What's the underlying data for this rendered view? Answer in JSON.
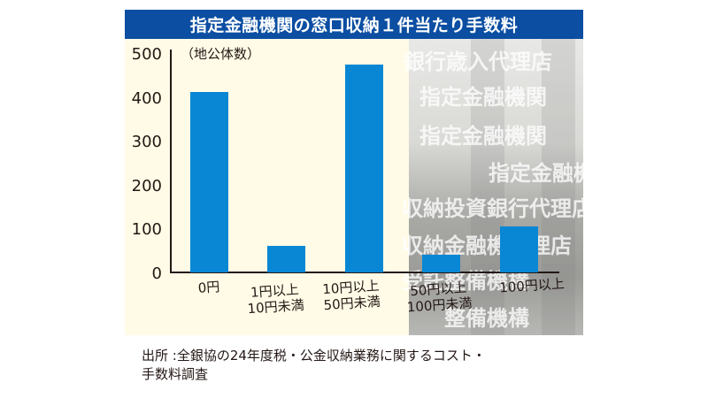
{
  "title": "指定金融機関の窓口収納１件当たり手数料",
  "unit_label": "（地公体数）",
  "colors": {
    "title_bg": "#0b4ea2",
    "bar": "#0a87d4",
    "plot_bg": "#fffbe6"
  },
  "y_ticks": [
    "500",
    "400",
    "300",
    "200",
    "100",
    "0"
  ],
  "x_labels": [
    {
      "line1": "0円",
      "line2": ""
    },
    {
      "line1": "1円以上",
      "line2": "10円未満"
    },
    {
      "line1": "10円以上",
      "line2": "50円未満"
    },
    {
      "line1": "50円以上",
      "line2": "100円未満"
    },
    {
      "line1": "100円以上",
      "line2": ""
    }
  ],
  "background_signs": [
    "銀行歳入代理店",
    "指定金融機関",
    "指定金融機関",
    "指定金融機",
    "収納投資銀行代理店",
    "収納金融機代理店",
    "受託整備機構",
    "整備機構"
  ],
  "source": {
    "line1": "出所 :全銀協の24年度税・公金収納業務に関するコスト・",
    "line2": "手数料調査"
  },
  "chart_data": {
    "type": "bar",
    "title": "指定金融機関の窓口収納１件当たり手数料",
    "xlabel": "",
    "ylabel": "（地公体数）",
    "categories": [
      "0円",
      "1円以上10円未満",
      "10円以上50円未満",
      "50円以上100円未満",
      "100円以上"
    ],
    "values": [
      410,
      60,
      472,
      40,
      105
    ],
    "ylim": [
      0,
      500
    ],
    "yticks": [
      0,
      100,
      200,
      300,
      400,
      500
    ],
    "grid": false,
    "legend": null,
    "annotations": [
      "出所 :全銀協の24年度税・公金収納業務に関するコスト・手数料調査"
    ]
  }
}
